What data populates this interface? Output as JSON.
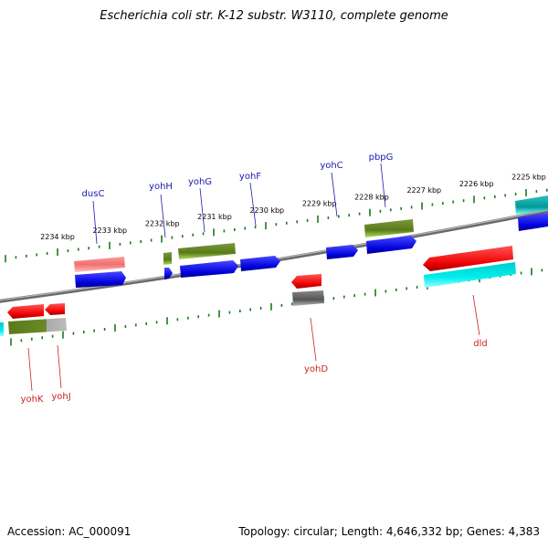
{
  "title": "Escherichia coli str. K-12 substr. W3110, complete genome",
  "footer": {
    "accession": "Accession: AC_000091",
    "summary": "Topology: circular; Length: 4,646,332 bp; Genes: 4,383"
  },
  "colors": {
    "backbone": "#808080",
    "ticks": "#1a7a1a",
    "forward_label": "#1a1aaa",
    "reverse_label": "#cc2222"
  },
  "ticks": [
    {
      "label": "2225 kbp",
      "pos_kbp": 2225
    },
    {
      "label": "2226 kbp",
      "pos_kbp": 2226
    },
    {
      "label": "2227 kbp",
      "pos_kbp": 2227
    },
    {
      "label": "2228 kbp",
      "pos_kbp": 2228
    },
    {
      "label": "2229 kbp",
      "pos_kbp": 2229
    },
    {
      "label": "2230 kbp",
      "pos_kbp": 2230
    },
    {
      "label": "2231 kbp",
      "pos_kbp": 2231
    },
    {
      "label": "2232 kbp",
      "pos_kbp": 2232
    },
    {
      "label": "2233 kbp",
      "pos_kbp": 2233
    },
    {
      "label": "2234 kbp",
      "pos_kbp": 2234
    }
  ],
  "forward_labels": [
    {
      "name": "dusC"
    },
    {
      "name": "yohH"
    },
    {
      "name": "yohG"
    },
    {
      "name": "yohF"
    },
    {
      "name": "yohC"
    },
    {
      "name": "pbpG"
    }
  ],
  "reverse_labels": [
    {
      "name": "yohK"
    },
    {
      "name": "yohJ"
    },
    {
      "name": "yohD"
    },
    {
      "name": "dld"
    }
  ]
}
